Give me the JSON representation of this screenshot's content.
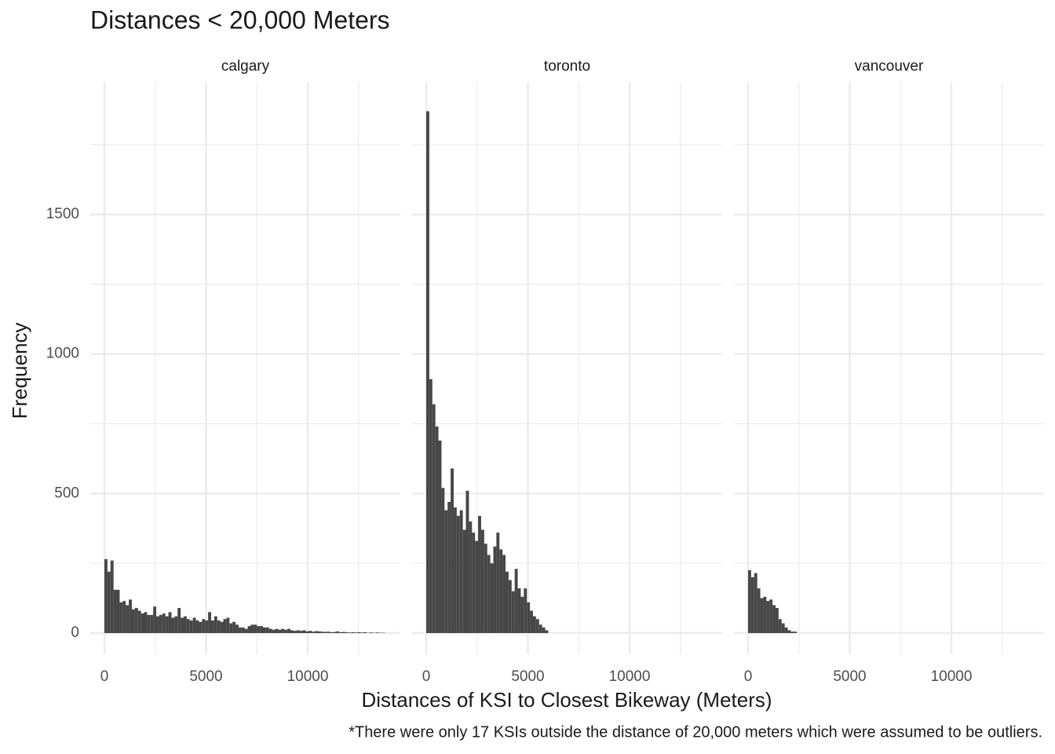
{
  "title": "Distances < 20,000 Meters",
  "x_label": "Distances of KSI to Closest Bikeway (Meters)",
  "y_label": "Frequency",
  "caption": "*There were only 17 KSIs outside the distance of 20,000 meters which were assumed to be outliers.",
  "chart_data": [
    {
      "type": "histogram",
      "title": "calgary",
      "color": "#474747",
      "grid": true,
      "bins": [
        0,
        150,
        300,
        450,
        600,
        750,
        900,
        1050,
        1200,
        1350,
        1500,
        1650,
        1800,
        1950,
        2100,
        2250,
        2400,
        2550,
        2700,
        2850,
        3000,
        3150,
        3300,
        3450,
        3600,
        3750,
        3900,
        4050,
        4200,
        4350,
        4500,
        4650,
        4800,
        4950,
        5100,
        5250,
        5400,
        5550,
        5700,
        5850,
        6000,
        6150,
        6300,
        6450,
        6600,
        6750,
        6900,
        7050,
        7200,
        7350,
        7500,
        7650,
        7800,
        7950,
        8100,
        8250,
        8400,
        8550,
        8700,
        8850,
        9000,
        9150,
        9300,
        9450,
        9600,
        9750,
        9900,
        10050,
        10200,
        10350,
        10500,
        10650,
        10800,
        10950,
        11100,
        11250,
        11400,
        11550,
        11700,
        11850,
        12000,
        12150,
        12300,
        12450,
        12600,
        12750,
        12900,
        13050,
        13200,
        13350,
        13500,
        13650,
        13800
      ],
      "values": [
        265,
        220,
        260,
        155,
        155,
        110,
        115,
        100,
        120,
        85,
        90,
        80,
        70,
        75,
        65,
        65,
        95,
        60,
        65,
        70,
        60,
        75,
        55,
        60,
        90,
        55,
        60,
        50,
        45,
        55,
        45,
        40,
        50,
        45,
        75,
        45,
        60,
        45,
        40,
        50,
        55,
        35,
        40,
        30,
        20,
        20,
        15,
        25,
        30,
        30,
        25,
        25,
        20,
        20,
        15,
        12,
        15,
        12,
        15,
        12,
        15,
        10,
        8,
        10,
        8,
        10,
        6,
        8,
        5,
        7,
        6,
        5,
        4,
        5,
        3,
        4,
        6,
        3,
        4,
        3,
        2,
        3,
        2,
        3,
        2,
        3,
        1,
        2,
        1,
        2,
        1,
        1
      ],
      "xlim": [
        -695,
        14556
      ],
      "xticks": [
        0,
        5000,
        10000
      ],
      "xticks_minor": [
        2500,
        7500,
        12500
      ],
      "ylim": [
        -76,
        1973
      ],
      "yticks": [
        0,
        500,
        1000,
        1500
      ],
      "yticks_minor": [
        250,
        750,
        1250,
        1750
      ]
    },
    {
      "type": "histogram",
      "title": "toronto",
      "color": "#474747",
      "grid": true,
      "bins": [
        0,
        150,
        300,
        450,
        600,
        750,
        900,
        1050,
        1200,
        1350,
        1500,
        1650,
        1800,
        1950,
        2100,
        2250,
        2400,
        2550,
        2700,
        2850,
        3000,
        3150,
        3300,
        3450,
        3600,
        3750,
        3900,
        4050,
        4200,
        4350,
        4500,
        4650,
        4800,
        4950,
        5100,
        5250,
        5400,
        5550,
        5700,
        5850,
        6000
      ],
      "values": [
        1870,
        910,
        820,
        740,
        690,
        520,
        440,
        470,
        590,
        450,
        420,
        440,
        370,
        510,
        400,
        360,
        330,
        420,
        370,
        320,
        280,
        250,
        310,
        360,
        300,
        280,
        220,
        190,
        150,
        230,
        160,
        130,
        160,
        110,
        80,
        60,
        50,
        30,
        20,
        10
      ],
      "xlim": [
        -695,
        14556
      ],
      "xticks": [
        0,
        5000,
        10000
      ],
      "xticks_minor": [
        2500,
        7500,
        12500
      ],
      "ylim": [
        -76,
        1973
      ]
    },
    {
      "type": "histogram",
      "title": "vancouver",
      "color": "#474747",
      "grid": true,
      "bins": [
        0,
        150,
        300,
        450,
        600,
        750,
        900,
        1050,
        1200,
        1350,
        1500,
        1650,
        1800,
        1950,
        2100,
        2250,
        2400
      ],
      "values": [
        225,
        200,
        215,
        160,
        125,
        130,
        115,
        120,
        100,
        90,
        50,
        35,
        20,
        10,
        5,
        5
      ],
      "xlim": [
        -695,
        14556
      ],
      "xticks": [
        0,
        5000,
        10000
      ],
      "xticks_minor": [
        2500,
        7500,
        12500
      ],
      "ylim": [
        -76,
        1973
      ]
    }
  ]
}
